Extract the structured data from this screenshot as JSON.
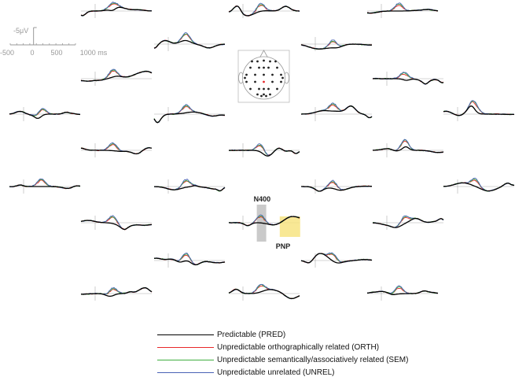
{
  "chart_data": {
    "type": "line",
    "scale_bar": {
      "amplitude_label": "-5μV",
      "x_ticks": [
        "-500",
        "0",
        "500",
        "1000 ms"
      ]
    },
    "series": [
      {
        "name": "Predictable (PRED)",
        "color": "#000000"
      },
      {
        "name": "Unpredictable orthographically related (ORTH)",
        "color": "#e8282b"
      },
      {
        "name": "Unpredictable semantically/associatively related (SEM)",
        "color": "#3fae3f"
      },
      {
        "name": "Unpredictable unrelated (UNREL)",
        "color": "#4a63b5"
      }
    ],
    "annotations": [
      {
        "label": "N400",
        "window_ms": [
          300,
          500
        ],
        "color": "#bdbdbd"
      },
      {
        "label": "PNP",
        "window_ms": [
          600,
          1000
        ],
        "color": "#f6e27a"
      }
    ],
    "electrode_montage": {
      "electrodes": 32,
      "highlighted": 1,
      "highlight_color": "#e8282b"
    }
  }
}
